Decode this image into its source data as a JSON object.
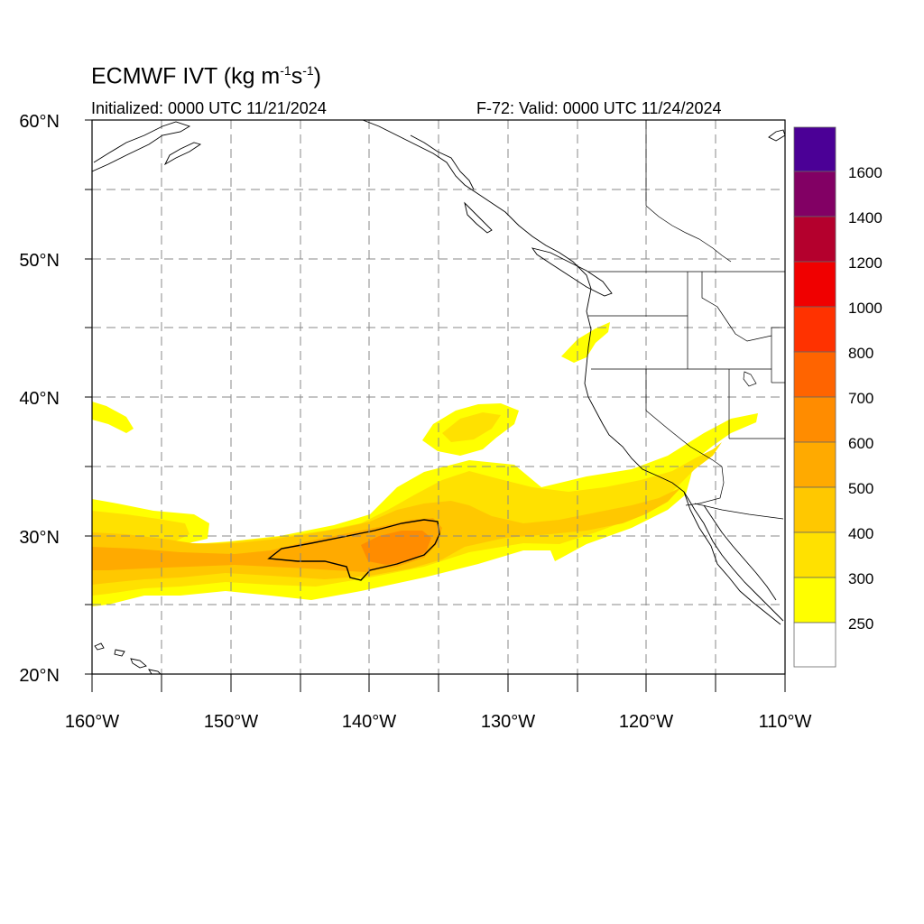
{
  "header": {
    "title_main": "ECMWF IVT (kg m",
    "title_sup1": "-1",
    "title_mid": "s",
    "title_sup2": "-1",
    "title_end": ")",
    "initialized": "Initialized: 0000 UTC 11/21/2024",
    "valid": "F-72: Valid: 0000 UTC 11/24/2024"
  },
  "map": {
    "lat_labels": [
      "60°N",
      "50°N",
      "40°N",
      "30°N",
      "20°N"
    ],
    "lon_labels": [
      "160°W",
      "150°W",
      "140°W",
      "130°W",
      "120°W",
      "110°W"
    ],
    "lat_range": [
      20,
      60
    ],
    "lon_range": [
      -160,
      -110
    ],
    "grid_lats": [
      25,
      30,
      35,
      40,
      45,
      50,
      55
    ],
    "grid_lons": [
      -155,
      -150,
      -145,
      -140,
      -135,
      -130,
      -125,
      -120,
      -115
    ]
  },
  "colorbar": {
    "labels": [
      "1600",
      "1400",
      "1200",
      "1000",
      "800",
      "700",
      "600",
      "500",
      "400",
      "300",
      "250"
    ],
    "colors": [
      "#ffffff",
      "#ffff00",
      "#ffe100",
      "#ffc800",
      "#ffaa00",
      "#ff8c00",
      "#ff6400",
      "#ff3200",
      "#f00000",
      "#d20000",
      "#b4002d",
      "#820064",
      "#4b0096"
    ],
    "ivt_contour_value": "500"
  },
  "colors": {
    "level_250": "#ffff00",
    "level_300": "#ffe100",
    "level_400": "#ffc800",
    "level_500": "#ffaa00",
    "level_600": "#ff8c00",
    "grid": "#888888",
    "coast": "#000000"
  }
}
